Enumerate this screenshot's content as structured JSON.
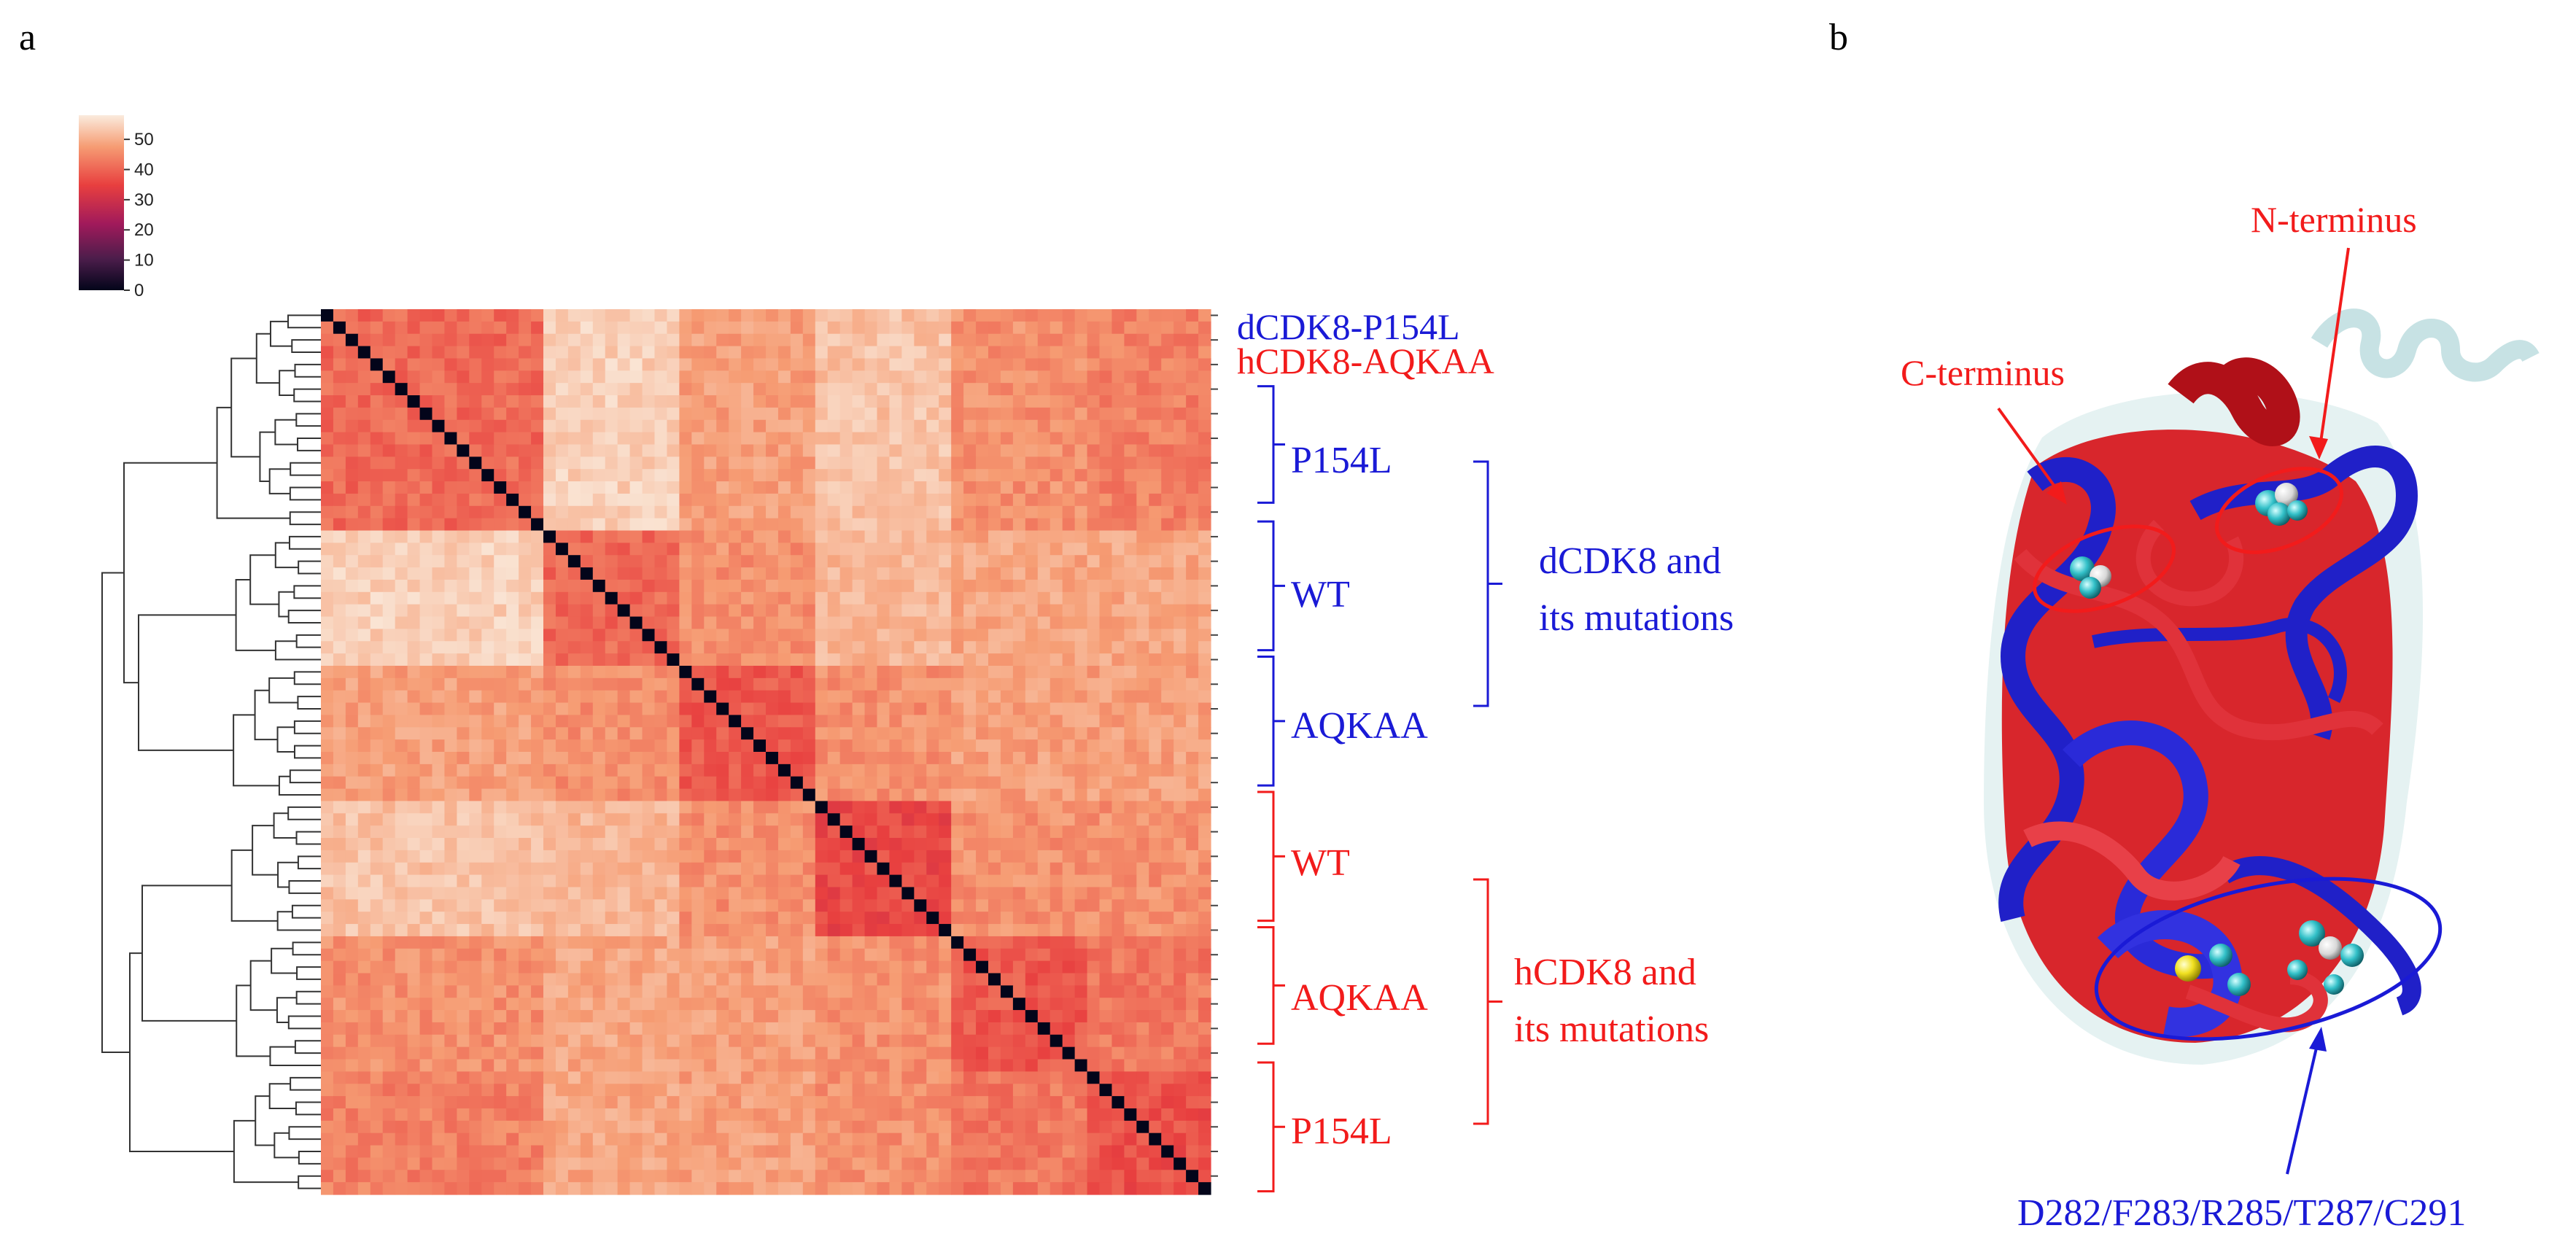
{
  "panels": {
    "a": "a",
    "b": "b"
  },
  "colors": {
    "blue": "#1a1ad6",
    "red": "#f21b1b",
    "colormap": [
      "#03051a",
      "#4c1d4b",
      "#a11a5b",
      "#e83f3f",
      "#f69c73",
      "#faebdd"
    ]
  },
  "chart_data": {
    "type": "heatmap",
    "title": "",
    "size": 72,
    "colorbar": {
      "min": 0,
      "max": 58,
      "ticks": [
        0,
        10,
        20,
        30,
        40,
        50
      ]
    },
    "diagonal_value": 0,
    "block_boundaries": [
      0,
      18,
      29,
      40,
      51,
      62,
      72
    ],
    "block_values": [
      [
        40,
        54,
        47,
        52,
        45,
        43
      ],
      [
        54,
        40,
        45,
        50,
        48,
        48
      ],
      [
        47,
        45,
        38,
        45,
        47,
        47
      ],
      [
        52,
        50,
        45,
        36,
        45,
        45
      ],
      [
        45,
        48,
        47,
        45,
        38,
        42
      ],
      [
        43,
        48,
        47,
        45,
        42,
        37
      ]
    ],
    "row_labels": [
      {
        "text": "dCDK8-P154L",
        "color": "blue"
      },
      {
        "text": "hCDK8-AQKAA",
        "color": "red"
      }
    ],
    "groups": [
      {
        "label": "P154L",
        "color": "blue",
        "rows": [
          6,
          15
        ]
      },
      {
        "label": "WT",
        "color": "blue",
        "rows": [
          17,
          27
        ]
      },
      {
        "label": "AQKAA",
        "color": "blue",
        "rows": [
          28,
          38
        ]
      },
      {
        "label": "WT",
        "color": "red",
        "rows": [
          39,
          49
        ]
      },
      {
        "label": "AQKAA",
        "color": "red",
        "rows": [
          50,
          59
        ]
      },
      {
        "label": "P154L",
        "color": "red",
        "rows": [
          61,
          71
        ]
      }
    ],
    "super_groups": [
      {
        "lines": [
          "dCDK8 and",
          "its mutations"
        ],
        "color": "blue"
      },
      {
        "lines": [
          "hCDK8 and",
          "its mutations"
        ],
        "color": "red"
      }
    ]
  },
  "structure": {
    "annotations": {
      "n_terminus": "N-terminus",
      "c_terminus": "C-terminus",
      "residues": "D282/F283/R285/T287/C291"
    }
  }
}
